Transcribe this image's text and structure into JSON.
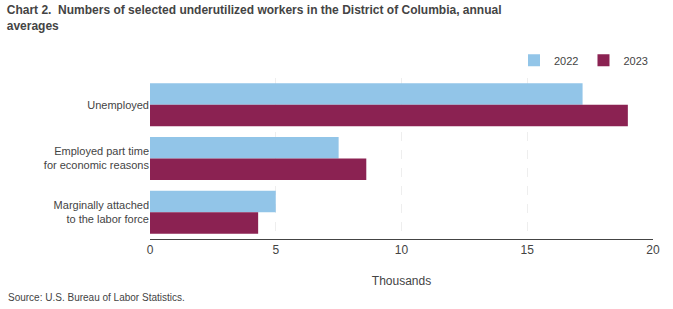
{
  "chart_data": {
    "type": "bar",
    "orientation": "horizontal",
    "title": "Chart 2.  Numbers of selected underutilized workers in the District of Columbia, annual\naverages",
    "categories": [
      "Unemployed",
      "Employed part time\nfor economic reasons",
      "Marginally attached\nto the labor force"
    ],
    "series": [
      {
        "name": "2022",
        "color": "#92C5E8",
        "values": [
          17.2,
          7.5,
          5.0
        ]
      },
      {
        "name": "2023",
        "color": "#8B2252",
        "values": [
          19.0,
          8.6,
          4.3
        ]
      }
    ],
    "xlim": [
      0,
      20
    ],
    "xticks": [
      0,
      5,
      10,
      15,
      20
    ],
    "xlabel": "Thousands",
    "grid": true,
    "legend": "upper right",
    "annotations": [
      "Source: U.S. Bureau of Labor Statistics."
    ]
  }
}
